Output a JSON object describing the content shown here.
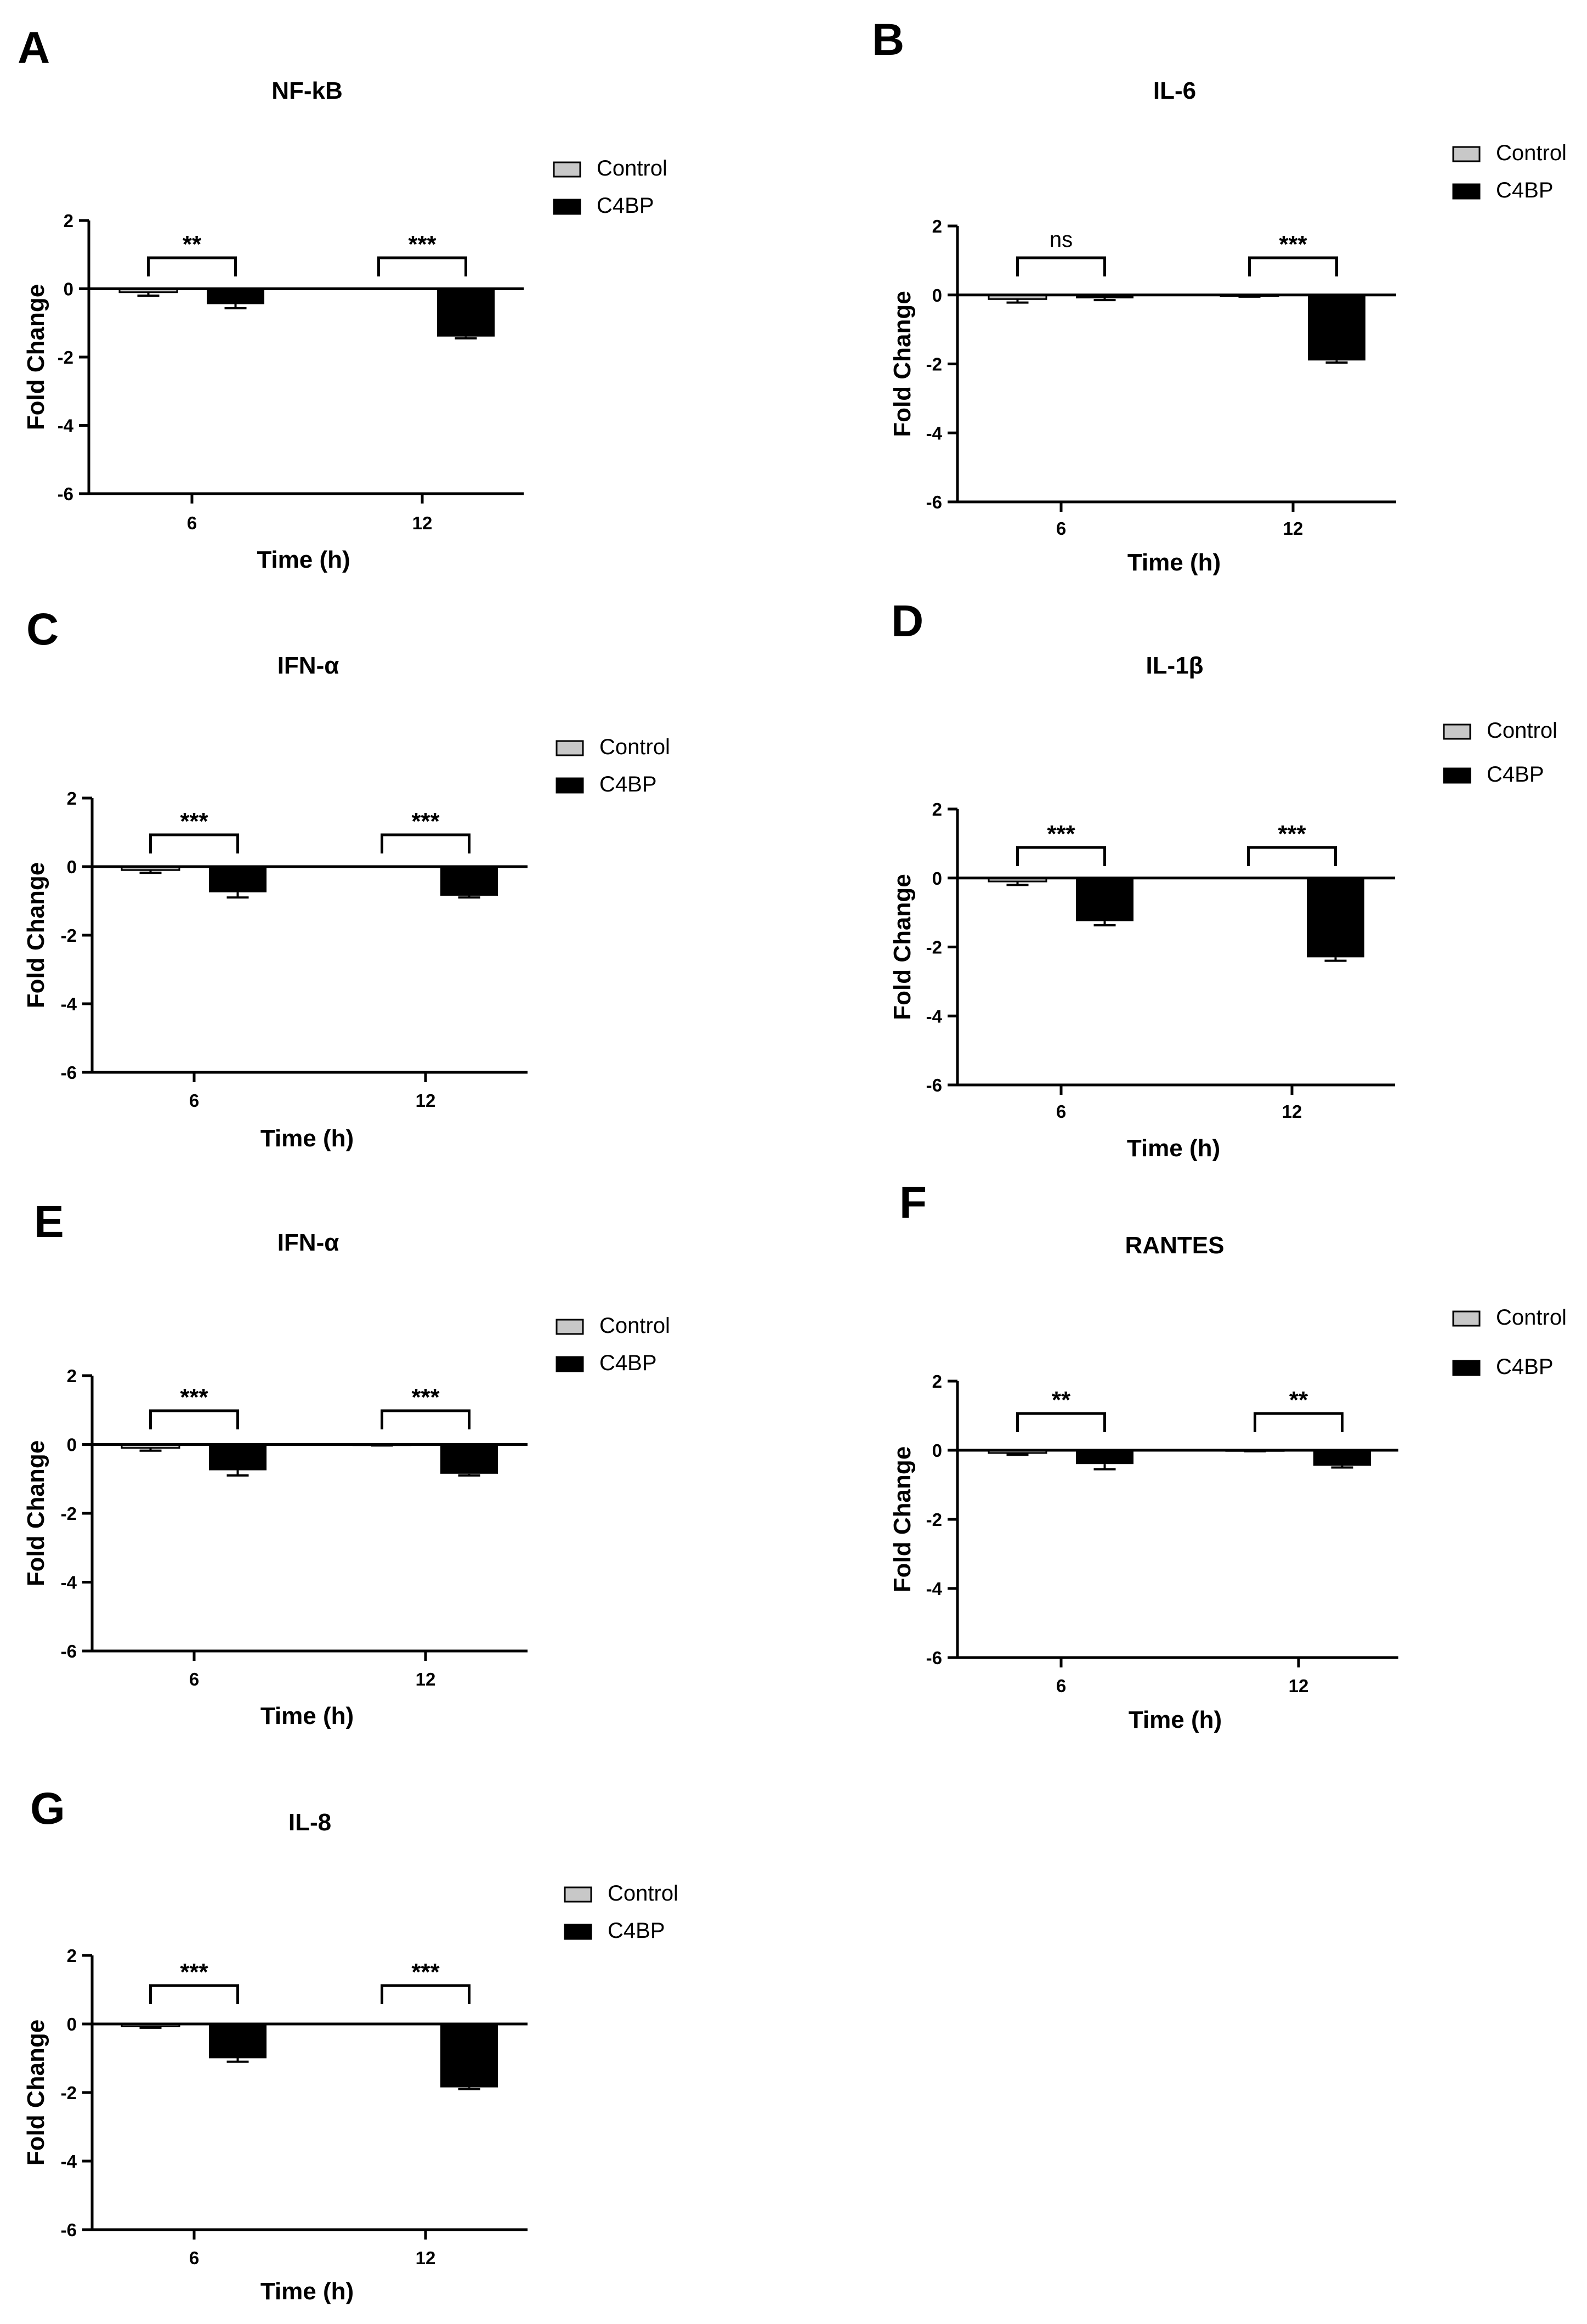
{
  "colors": {
    "control": "#c8c8c8",
    "c4bp": "#000000",
    "axis": "#000000"
  },
  "legend_labels": [
    "Control",
    "C4BP"
  ],
  "chart_data": [
    {
      "panel": "A",
      "title": "NF-kB",
      "type": "bar",
      "xlabel": "Time (h)",
      "ylabel": "Fold Change",
      "categories": [
        "6",
        "12"
      ],
      "ylim": [
        -6,
        2
      ],
      "yticks": [
        2,
        0,
        -2,
        -4,
        -6
      ],
      "series": [
        {
          "name": "Control",
          "values": [
            -0.1,
            0.0
          ],
          "errors": [
            0.1,
            0.0
          ]
        },
        {
          "name": "C4BP",
          "values": [
            -0.45,
            -1.4
          ],
          "errors": [
            0.12,
            0.05
          ]
        }
      ],
      "significance": [
        "**",
        "***"
      ]
    },
    {
      "panel": "B",
      "title": "IL-6",
      "type": "bar",
      "xlabel": "Time (h)",
      "ylabel": "Fold Change",
      "categories": [
        "6",
        "12"
      ],
      "ylim": [
        -6,
        2
      ],
      "yticks": [
        2,
        0,
        -2,
        -4,
        -6
      ],
      "series": [
        {
          "name": "Control",
          "values": [
            -0.12,
            -0.03
          ],
          "errors": [
            0.1,
            0.02
          ]
        },
        {
          "name": "C4BP",
          "values": [
            -0.1,
            -1.9
          ],
          "errors": [
            0.05,
            0.06
          ]
        }
      ],
      "significance": [
        "ns",
        "***"
      ]
    },
    {
      "panel": "C",
      "title": "IFN-α",
      "type": "bar",
      "xlabel": "Time (h)",
      "ylabel": "Fold Change",
      "categories": [
        "6",
        "12"
      ],
      "ylim": [
        -6,
        2
      ],
      "yticks": [
        2,
        0,
        -2,
        -4,
        -6
      ],
      "series": [
        {
          "name": "Control",
          "values": [
            -0.1,
            0.0
          ],
          "errors": [
            0.08,
            0.0
          ]
        },
        {
          "name": "C4BP",
          "values": [
            -0.75,
            -0.85
          ],
          "errors": [
            0.15,
            0.05
          ]
        }
      ],
      "significance": [
        "***",
        "***"
      ]
    },
    {
      "panel": "D",
      "title": "IL-1β",
      "type": "bar",
      "xlabel": "Time (h)",
      "ylabel": "Fold Change",
      "categories": [
        "6",
        "12"
      ],
      "ylim": [
        -6,
        2
      ],
      "yticks": [
        2,
        0,
        -2,
        -4,
        -6
      ],
      "series": [
        {
          "name": "Control",
          "values": [
            -0.1,
            0.0
          ],
          "errors": [
            0.1,
            0.0
          ]
        },
        {
          "name": "C4BP",
          "values": [
            -1.25,
            -2.3
          ],
          "errors": [
            0.12,
            0.1
          ]
        }
      ],
      "significance": [
        "***",
        "***"
      ]
    },
    {
      "panel": "E",
      "title": "IFN-α",
      "type": "bar",
      "xlabel": "Time (h)",
      "ylabel": "Fold Change",
      "categories": [
        "6",
        "12"
      ],
      "ylim": [
        -6,
        2
      ],
      "yticks": [
        2,
        0,
        -2,
        -4,
        -6
      ],
      "series": [
        {
          "name": "Control",
          "values": [
            -0.1,
            -0.02
          ],
          "errors": [
            0.08,
            0.01
          ]
        },
        {
          "name": "C4BP",
          "values": [
            -0.75,
            -0.85
          ],
          "errors": [
            0.15,
            0.05
          ]
        }
      ],
      "significance": [
        "***",
        "***"
      ]
    },
    {
      "panel": "F",
      "title": "RANTES",
      "type": "bar",
      "xlabel": "Time (h)",
      "ylabel": "Fold Change",
      "categories": [
        "6",
        "12"
      ],
      "ylim": [
        -6,
        2
      ],
      "yticks": [
        2,
        0,
        -2,
        -4,
        -6
      ],
      "series": [
        {
          "name": "Control",
          "values": [
            -0.08,
            -0.02
          ],
          "errors": [
            0.05,
            0.01
          ]
        },
        {
          "name": "C4BP",
          "values": [
            -0.4,
            -0.45
          ],
          "errors": [
            0.15,
            0.05
          ]
        }
      ],
      "significance": [
        "**",
        "**"
      ]
    },
    {
      "panel": "G",
      "title": "IL-8",
      "type": "bar",
      "xlabel": "Time (h)",
      "ylabel": "Fold Change",
      "categories": [
        "6",
        "12"
      ],
      "ylim": [
        -6,
        2
      ],
      "yticks": [
        2,
        0,
        -2,
        -4,
        -6
      ],
      "series": [
        {
          "name": "Control",
          "values": [
            -0.07,
            0.0
          ],
          "errors": [
            0.04,
            0.0
          ]
        },
        {
          "name": "C4BP",
          "values": [
            -1.0,
            -1.85
          ],
          "errors": [
            0.1,
            0.05
          ]
        }
      ],
      "significance": [
        "***",
        "***"
      ]
    }
  ]
}
